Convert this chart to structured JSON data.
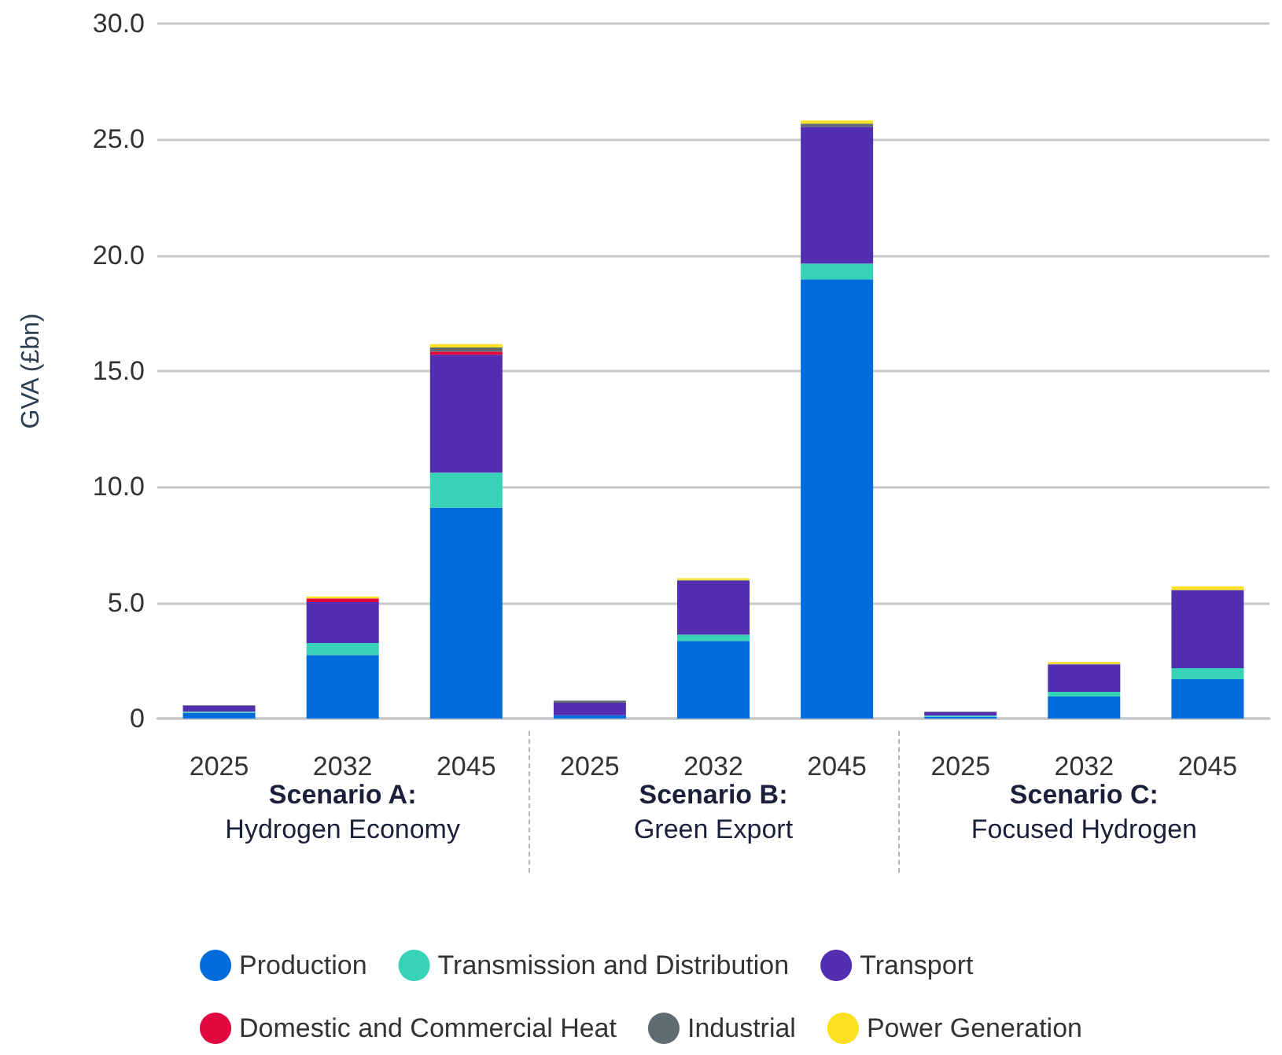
{
  "chart_data": {
    "type": "bar",
    "stacked": true,
    "ylabel": "GVA (£bn)",
    "categories": [
      "2025",
      "2032",
      "2045",
      "2025",
      "2032",
      "2045",
      "2025",
      "2032",
      "2045"
    ],
    "series": [
      {
        "name": "Production",
        "color": "#006cdc",
        "values": [
          0.25,
          2.74,
          9.1,
          0.14,
          3.35,
          18.96,
          0.08,
          0.95,
          1.7
        ]
      },
      {
        "name": "Transmission and Distribution",
        "color": "#36d3b7",
        "values": [
          0.05,
          0.52,
          1.51,
          0,
          0.27,
          0.68,
          0.05,
          0.2,
          0.47
        ]
      },
      {
        "name": "Transport",
        "color": "#532eb1",
        "values": [
          0.25,
          1.76,
          5.09,
          0.54,
          2.33,
          5.91,
          0.15,
          1.18,
          3.38
        ]
      },
      {
        "name": "Domestic and Commercial Heat",
        "color": "#e0073e",
        "values": [
          0,
          0.16,
          0.14,
          0,
          0,
          0,
          0,
          0,
          0
        ]
      },
      {
        "name": "Industrial",
        "color": "#5f6b73",
        "values": [
          0.03,
          null,
          0.18,
          0.09,
          0.03,
          0.13,
          0.02,
          0.03,
          0
        ]
      },
      {
        "name": "Power Generation",
        "color": "#fbe122",
        "values": [
          0,
          0.09,
          0.14,
          0,
          0.08,
          0.14,
          0,
          0.08,
          0.15
        ]
      }
    ],
    "ylim": [
      0,
      30
    ],
    "yticks": [
      {
        "value": 0,
        "label": "0"
      },
      {
        "value": 5,
        "label": "5.0"
      },
      {
        "value": 10,
        "label": "10.0"
      },
      {
        "value": 15,
        "label": "15.0"
      },
      {
        "value": 20,
        "label": "20.0"
      },
      {
        "value": 25,
        "label": "25.0"
      },
      {
        "value": 30,
        "label": "30.0"
      }
    ],
    "grid": "y",
    "legend": "bottom",
    "annotations": [
      "Scenario A:\nHydrogen Economy",
      "Scenario B:\nGreen Export",
      "Scenario C:\nFocused Hydrogen"
    ]
  }
}
